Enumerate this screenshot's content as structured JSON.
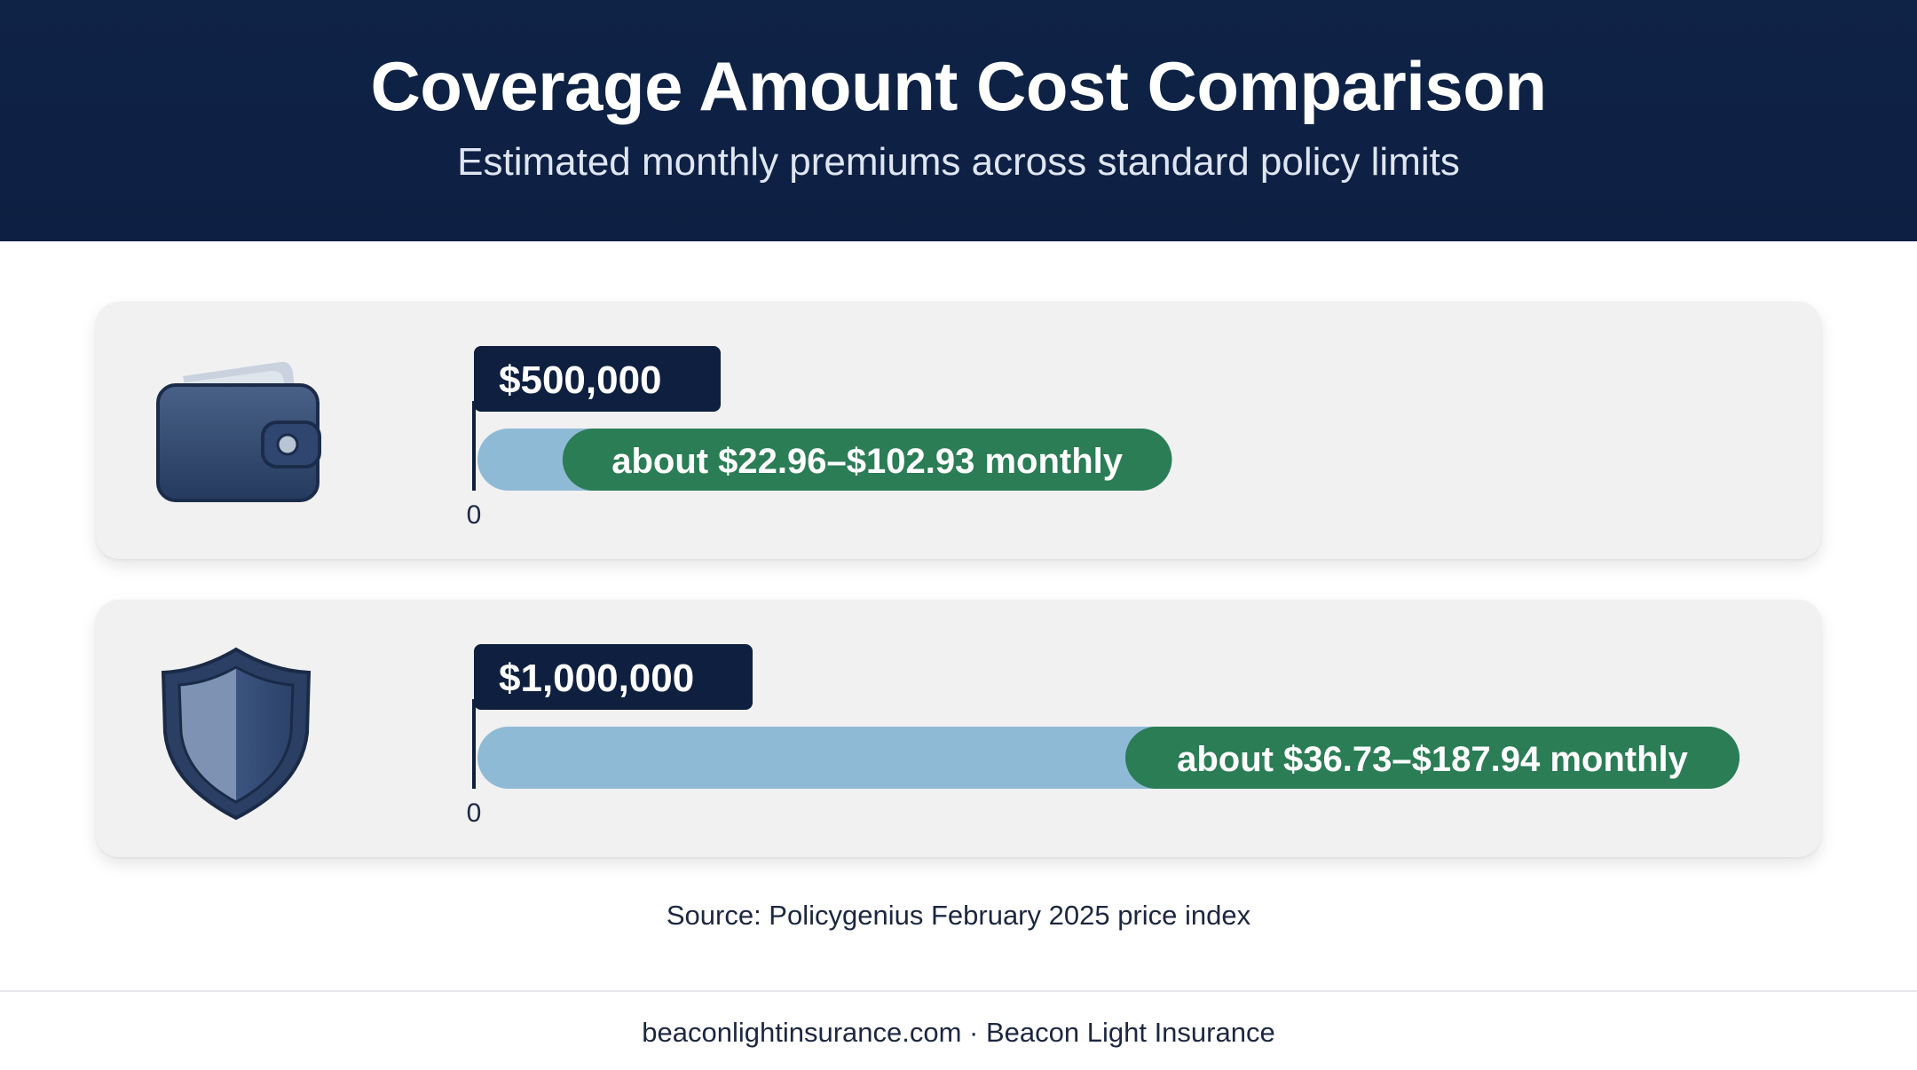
{
  "header": {
    "title": "Coverage Amount Cost Comparison",
    "subtitle": "Estimated monthly premiums across standard policy limits"
  },
  "colors": {
    "header_bg": "#0f2347",
    "label_bg": "#0e1f3f",
    "bar_fill": "#8fbad6",
    "range_pill": "#2b7d55",
    "card_bg": "#f1f1f1"
  },
  "chart_data": {
    "type": "bar",
    "orientation": "horizontal",
    "categories": [
      "$500,000",
      "$1,000,000"
    ],
    "axis_zero_label": "0",
    "series": [
      {
        "values": [
          {
            "category": "$500,000",
            "low": 22.96,
            "high": 102.93,
            "label": "about $22.96–$102.93 monthly",
            "icon": "wallet-icon"
          },
          {
            "category": "$1,000,000",
            "low": 36.73,
            "high": 187.94,
            "label": "about $36.73–$187.94 monthly",
            "icon": "shield-icon"
          }
        ]
      }
    ]
  },
  "source": "Source: Policygenius February 2025 price index",
  "footer": "beaconlightinsurance.com · Beacon Light Insurance"
}
